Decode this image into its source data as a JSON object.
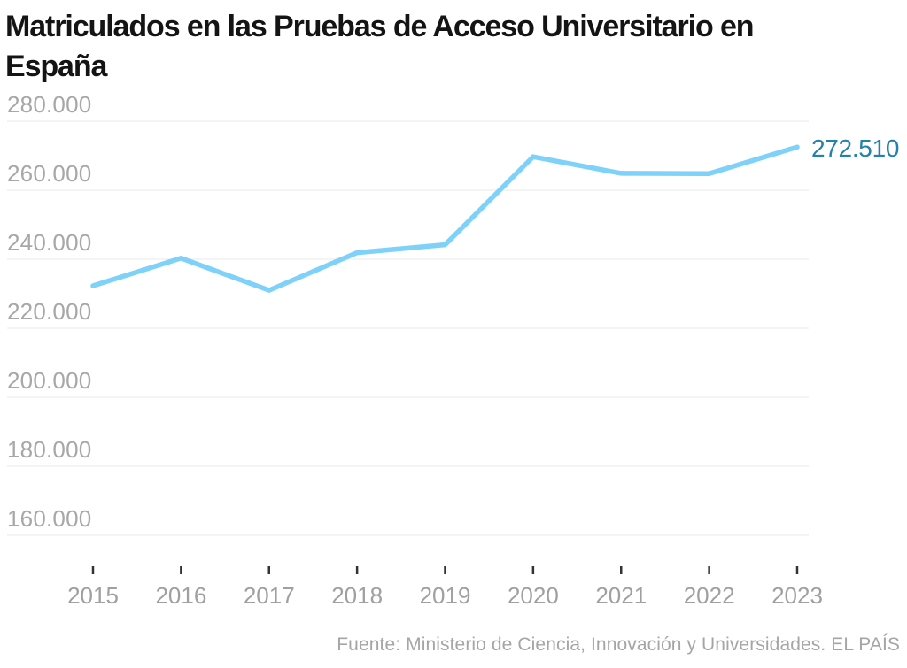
{
  "title": "Matriculados en las Pruebas de Acceso Universitario en España",
  "title_lines": [
    "Matriculados en las Pruebas de Acceso Universitario en",
    "España"
  ],
  "source": "Fuente: Ministerio de Ciencia, Innovación y Universidades. EL PAÍS",
  "colors": {
    "line": "#7ed1f8",
    "end_label": "#2480ae",
    "grid": "#e8e8e8",
    "axis_text": "#a7a7a7",
    "tick": "#333333",
    "title_text": "#141414",
    "source_text": "#a5a5a5",
    "background": "#ffffff"
  },
  "chart_data": {
    "type": "line",
    "title": "Matriculados en las Pruebas de Acceso Universitario en España",
    "categories": [
      "2015",
      "2016",
      "2017",
      "2018",
      "2019",
      "2020",
      "2021",
      "2022",
      "2023"
    ],
    "series": [
      {
        "name": "Matriculados",
        "values": [
          232300,
          240300,
          231000,
          241900,
          244200,
          269700,
          264900,
          264800,
          272510
        ]
      }
    ],
    "yticks": [
      280000,
      260000,
      240000,
      220000,
      200000,
      180000,
      160000
    ],
    "ytick_labels": [
      "280.000",
      "260.000",
      "240.000",
      "220.000",
      "200.000",
      "180.000",
      "160.000"
    ],
    "ylim": [
      153000,
      288000
    ],
    "xlabel": "",
    "ylabel": "",
    "grid": true,
    "legend": false,
    "end_label": {
      "text": "272.510",
      "series": "Matriculados",
      "category": "2023"
    },
    "source": "Fuente: Ministerio de Ciencia, Innovación y Universidades. EL PAÍS"
  }
}
